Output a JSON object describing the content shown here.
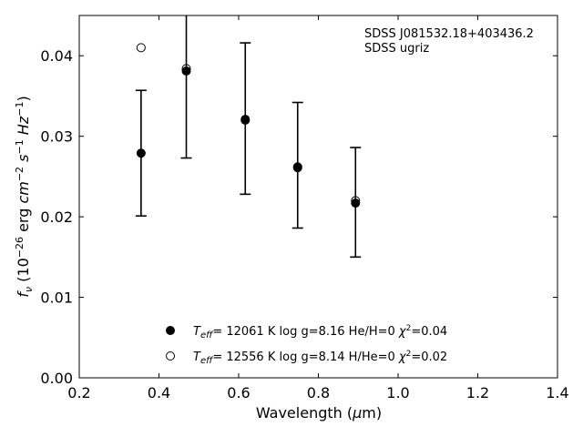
{
  "chart_data": {
    "type": "scatter",
    "title": "",
    "annotations": [
      "SDSS J081532.18+403436.2",
      "SDSS ugriz"
    ],
    "xlabel": "Wavelength (μm)",
    "ylabel": "f_ν (10⁻²⁶ erg cm⁻² s⁻¹ Hz⁻¹)",
    "xlim": [
      0.2,
      1.4
    ],
    "ylim": [
      0.0,
      0.045
    ],
    "xticks": [
      0.2,
      0.4,
      0.6,
      0.8,
      1.0,
      1.2,
      1.4
    ],
    "xtick_labels": [
      "0.2",
      "0.4",
      "0.6",
      "0.8",
      "1.0",
      "1.2",
      "1.4"
    ],
    "yticks": [
      0.0,
      0.01,
      0.02,
      0.03,
      0.04
    ],
    "ytick_labels": [
      "0.00",
      "0.01",
      "0.02",
      "0.03",
      "0.04"
    ],
    "grid": false,
    "legend_position": "bottom-center",
    "observed": {
      "x": [
        0.3551,
        0.4686,
        0.6166,
        0.748,
        0.8932
      ],
      "y": [
        0.0279,
        0.0384,
        0.0322,
        0.0264,
        0.0218
      ],
      "yerr": [
        0.0078,
        0.0111,
        0.0094,
        0.0078,
        0.0068
      ]
    },
    "series": [
      {
        "name": "T_eff= 12061 K  log g=8.16  He/H=0  χ²=0.04",
        "marker": "filled-circle",
        "x": [
          0.3551,
          0.4686,
          0.6166,
          0.748,
          0.8932
        ],
        "y": [
          0.0279,
          0.0381,
          0.0321,
          0.0262,
          0.0217
        ]
      },
      {
        "name": "T_eff= 12556 K  log g=8.14  H/He=0  χ²=0.02",
        "marker": "open-circle",
        "x": [
          0.3551,
          0.4686,
          0.6166,
          0.748,
          0.8932
        ],
        "y": [
          0.041,
          0.0384,
          0.032,
          0.0261,
          0.022
        ]
      }
    ]
  }
}
